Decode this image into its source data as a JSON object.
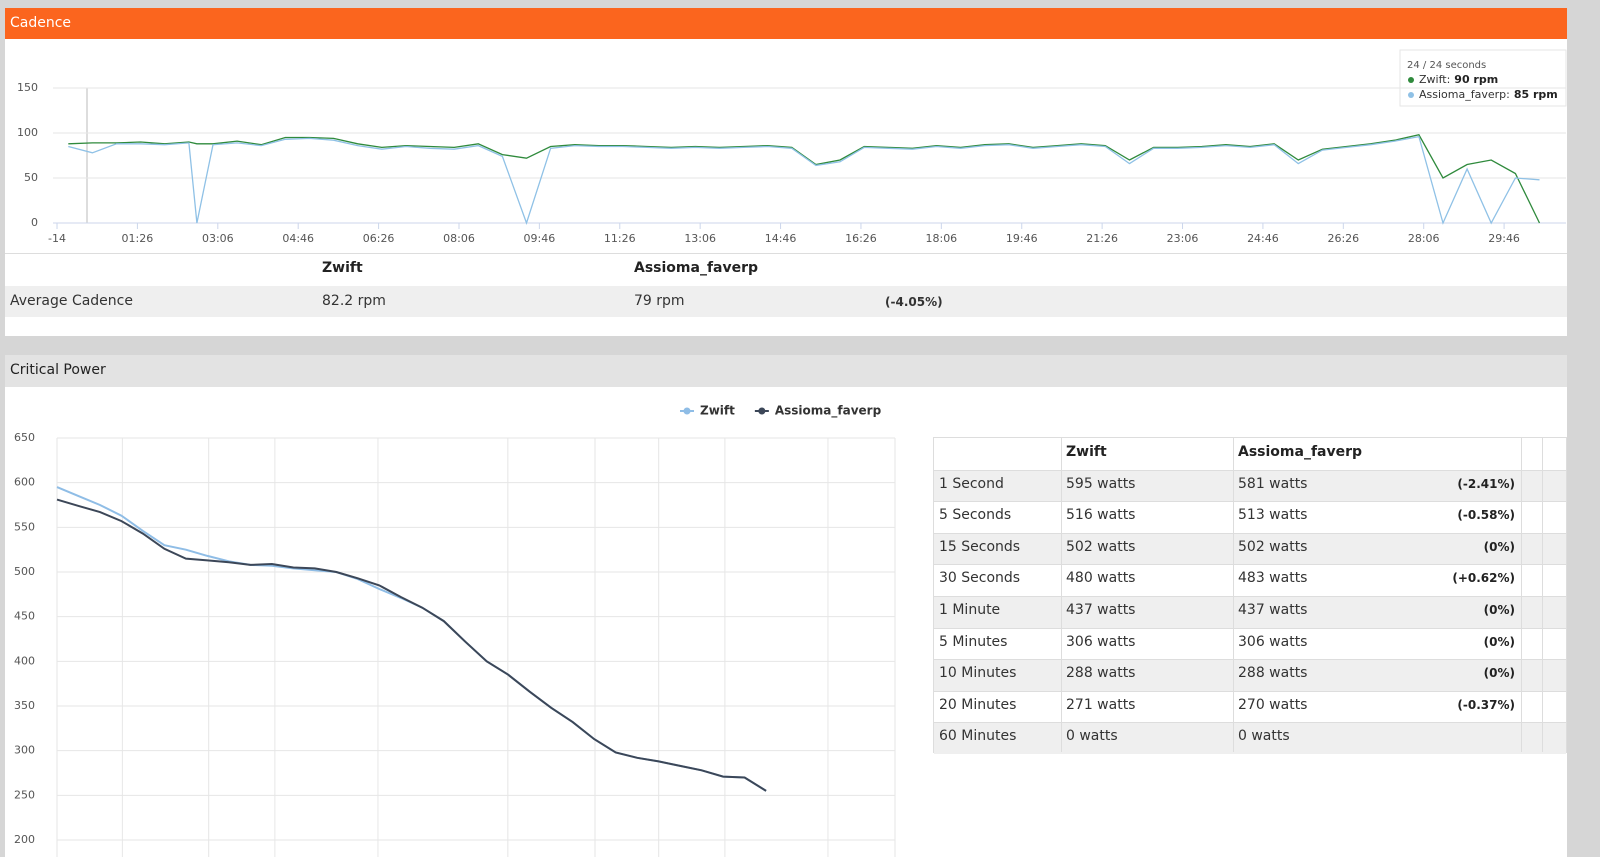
{
  "cadence_panel": {
    "title": "Cadence",
    "tooltip": {
      "header": "24 / 24 seconds",
      "rows": [
        {
          "name": "Zwift:",
          "value": "90 rpm"
        },
        {
          "name": "Assioma_faverp:",
          "value": "85 rpm"
        }
      ]
    },
    "stats": {
      "columns": [
        "Zwift",
        "Assioma_faverp"
      ],
      "rows": [
        [
          "Average Cadence",
          "82.2 rpm",
          "79 rpm",
          "(-4.05%)"
        ]
      ]
    }
  },
  "critical_power_panel": {
    "title": "Critical Power",
    "table": {
      "columns": [
        "Zwift",
        "Assioma_faverp"
      ],
      "rows": [
        [
          "1 Second",
          "595 watts",
          "581 watts",
          "(-2.41%)"
        ],
        [
          "5 Seconds",
          "516 watts",
          "513 watts",
          "(-0.58%)"
        ],
        [
          "15 Seconds",
          "502 watts",
          "502 watts",
          "(0%)"
        ],
        [
          "30 Seconds",
          "480 watts",
          "483 watts",
          "(+0.62%)"
        ],
        [
          "1 Minute",
          "437 watts",
          "437 watts",
          "(0%)"
        ],
        [
          "5 Minutes",
          "306 watts",
          "306 watts",
          "(0%)"
        ],
        [
          "10 Minutes",
          "288 watts",
          "288 watts",
          "(0%)"
        ],
        [
          "20 Minutes",
          "271 watts",
          "270 watts",
          "(-0.37%)"
        ],
        [
          "60 Minutes",
          "0 watts",
          "0 watts"
        ]
      ]
    }
  },
  "chart_data": [
    {
      "type": "line",
      "x": [
        0,
        30,
        60,
        90,
        120,
        150,
        160,
        180,
        210,
        240,
        270,
        300,
        330,
        360,
        390,
        420,
        450,
        480,
        510,
        540,
        570,
        600,
        630,
        660,
        690,
        720,
        750,
        780,
        810,
        840,
        870,
        900,
        930,
        960,
        990,
        1020,
        1050,
        1080,
        1110,
        1140,
        1170,
        1200,
        1230,
        1260,
        1290,
        1320,
        1350,
        1380,
        1410,
        1440,
        1470,
        1500,
        1530,
        1560,
        1590,
        1620,
        1650,
        1680,
        1710,
        1740,
        1770,
        1800,
        1830
      ],
      "xlim": [
        -19,
        1863
      ],
      "xticks": [
        -14,
        {
          "value": 86,
          "label": "01:26"
        },
        {
          "value": 186,
          "label": "03:06"
        },
        {
          "value": 286,
          "label": "04:46"
        },
        {
          "value": 386,
          "label": "06:26"
        },
        {
          "value": 486,
          "label": "08:06"
        },
        {
          "value": 586,
          "label": "09:46"
        },
        {
          "value": 686,
          "label": "11:26"
        },
        {
          "value": 786,
          "label": "13:06"
        },
        {
          "value": 886,
          "label": "14:46"
        },
        {
          "value": 986,
          "label": "16:26"
        },
        {
          "value": 1086,
          "label": "18:06"
        },
        {
          "value": 1186,
          "label": "19:46"
        },
        {
          "value": 1286,
          "label": "21:26"
        },
        {
          "value": 1386,
          "label": "23:06"
        },
        {
          "value": 1486,
          "label": "24:46"
        },
        {
          "value": 1586,
          "label": "26:26"
        },
        {
          "value": 1686,
          "label": "28:06"
        },
        {
          "value": 1786,
          "label": "29:46"
        }
      ],
      "ylim": [
        0,
        150
      ],
      "yticks": [
        0,
        50,
        100,
        150
      ],
      "grid": true,
      "series": [
        {
          "name": "Zwift",
          "color": "#2f8a3c",
          "values": [
            88,
            89,
            89,
            90,
            88,
            90,
            88,
            88,
            91,
            87,
            95,
            95,
            94,
            88,
            84,
            86,
            85,
            84,
            88,
            76,
            72,
            85,
            87,
            86,
            86,
            85,
            84,
            85,
            84,
            85,
            86,
            84,
            65,
            70,
            85,
            84,
            83,
            86,
            84,
            87,
            88,
            84,
            86,
            88,
            86,
            70,
            84,
            84,
            85,
            87,
            85,
            88,
            70,
            82,
            85,
            88,
            92,
            98,
            50,
            65,
            70,
            55,
            0
          ]
        },
        {
          "name": "Assioma_faverp",
          "color": "#8fc1e6",
          "values": [
            85,
            78,
            88,
            88,
            87,
            89,
            0,
            87,
            89,
            86,
            93,
            94,
            92,
            86,
            82,
            85,
            83,
            82,
            86,
            74,
            0,
            83,
            86,
            85,
            85,
            84,
            83,
            84,
            83,
            84,
            85,
            83,
            64,
            68,
            84,
            83,
            82,
            85,
            83,
            86,
            87,
            83,
            85,
            87,
            85,
            66,
            83,
            83,
            84,
            86,
            84,
            87,
            66,
            81,
            84,
            87,
            91,
            96,
            0,
            60,
            0,
            50,
            48
          ]
        }
      ]
    },
    {
      "type": "line",
      "categories": [
        null,
        null,
        null,
        null,
        null,
        null,
        null,
        null,
        null,
        null,
        null,
        null,
        null,
        null,
        null,
        null,
        null,
        null,
        null,
        null,
        null,
        null,
        null,
        null,
        null,
        null,
        null,
        null,
        null,
        null,
        null,
        null,
        null,
        null,
        null,
        null,
        null,
        null,
        null,
        null
      ],
      "ylim": [
        200,
        650
      ],
      "yticks": [
        200,
        250,
        300,
        350,
        400,
        450,
        500,
        550,
        600,
        650
      ],
      "grid": true,
      "legend": "top",
      "series": [
        {
          "name": "Zwift",
          "color": "#8fbde6",
          "values": [
            595,
            585,
            575,
            563,
            546,
            530,
            525,
            518,
            512,
            508,
            507,
            504,
            502,
            500,
            492,
            481,
            471,
            460,
            445,
            422,
            400,
            385,
            366,
            348,
            332,
            313,
            298,
            292,
            288,
            283,
            278,
            271,
            270,
            255,
            null,
            null,
            null,
            null,
            null,
            null
          ]
        },
        {
          "name": "Assioma_faverp",
          "color": "#3c4758",
          "values": [
            581,
            574,
            567,
            557,
            543,
            526,
            515,
            513,
            511,
            508,
            509,
            505,
            504,
            500,
            493,
            485,
            472,
            460,
            445,
            422,
            400,
            385,
            366,
            348,
            332,
            313,
            298,
            292,
            288,
            283,
            278,
            271,
            270,
            255,
            null,
            null,
            null,
            null,
            null,
            null
          ]
        }
      ]
    }
  ]
}
